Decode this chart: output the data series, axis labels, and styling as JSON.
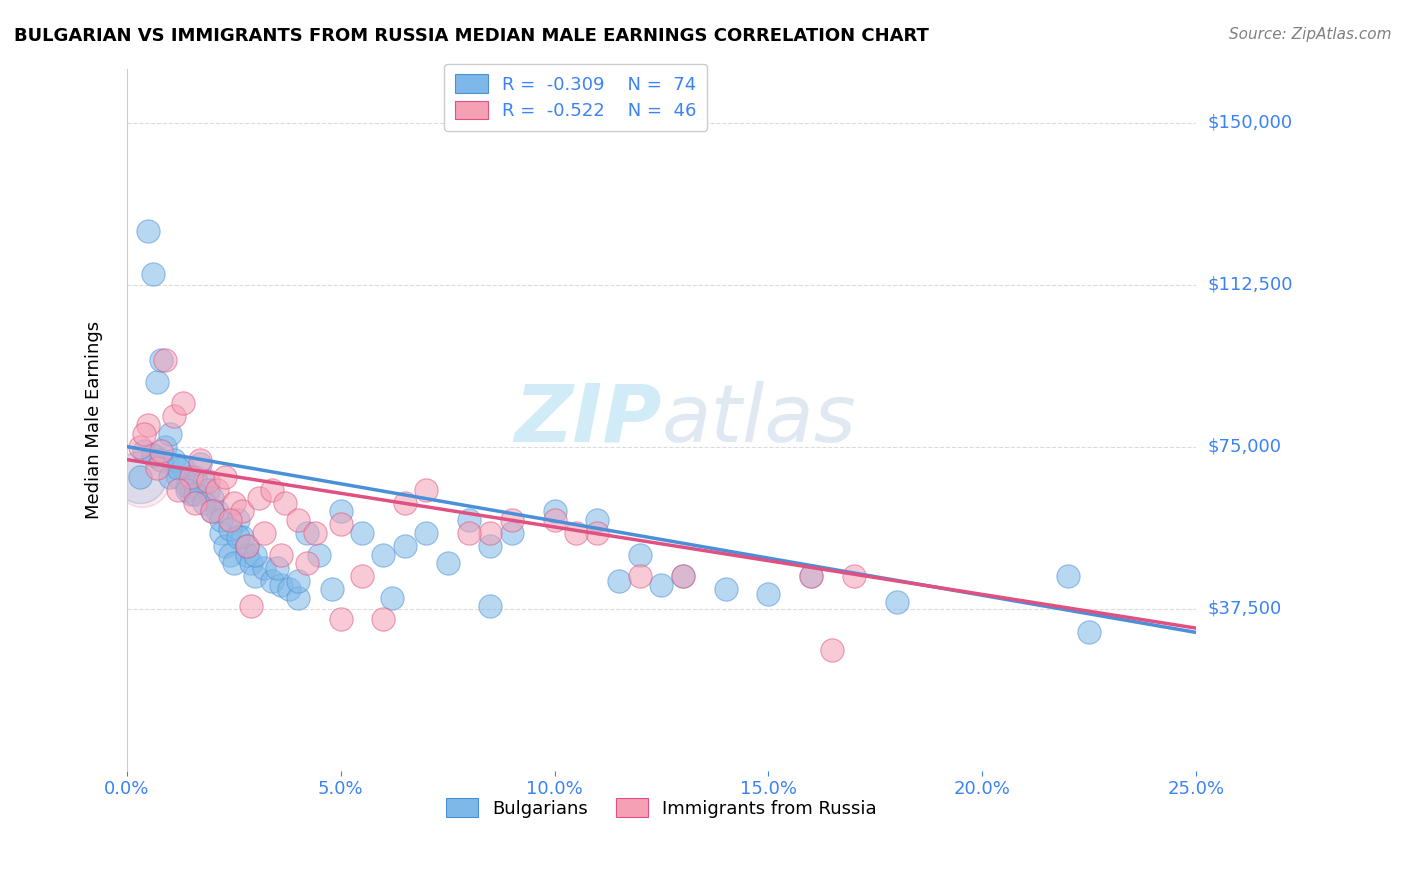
{
  "title": "BULGARIAN VS IMMIGRANTS FROM RUSSIA MEDIAN MALE EARNINGS CORRELATION CHART",
  "source": "Source: ZipAtlas.com",
  "ylabel": "Median Male Earnings",
  "xlabel_ticks": [
    "0.0%",
    "5.0%",
    "10.0%",
    "15.0%",
    "20.0%",
    "25.0%"
  ],
  "xlabel_vals": [
    0.0,
    5.0,
    10.0,
    15.0,
    20.0,
    25.0
  ],
  "ylabel_ticks": [
    0,
    37500,
    75000,
    112500,
    150000
  ],
  "ylabel_labels": [
    "$0",
    "$37,500",
    "$75,000",
    "$112,500",
    "$150,000"
  ],
  "xlim": [
    0.0,
    25.0
  ],
  "ylim": [
    0,
    162500
  ],
  "legend_r_blue": "-0.309",
  "legend_n_blue": "74",
  "legend_r_pink": "-0.522",
  "legend_n_pink": "46",
  "color_blue": "#7EB8E8",
  "color_pink": "#F4A0B5",
  "color_line_blue": "#4A90D9",
  "color_line_pink": "#E05080",
  "color_axis_labels": "#3B82F6",
  "background_color": "#FFFFFF",
  "blue_x": [
    0.3,
    0.5,
    0.6,
    0.7,
    0.8,
    0.9,
    1.0,
    1.1,
    1.2,
    1.3,
    1.4,
    1.5,
    1.6,
    1.7,
    1.8,
    1.9,
    2.0,
    2.1,
    2.2,
    2.3,
    2.4,
    2.5,
    2.6,
    2.7,
    2.8,
    2.9,
    3.0,
    3.2,
    3.4,
    3.6,
    3.8,
    4.0,
    4.2,
    4.5,
    5.0,
    5.5,
    6.0,
    6.5,
    7.0,
    7.5,
    8.0,
    8.5,
    9.0,
    10.0,
    11.0,
    12.0,
    13.0,
    14.0,
    16.0,
    22.0,
    0.4,
    0.6,
    0.8,
    1.0,
    1.2,
    1.4,
    1.6,
    1.8,
    2.0,
    2.2,
    2.4,
    2.6,
    2.8,
    3.0,
    3.5,
    4.0,
    4.8,
    6.2,
    8.5,
    11.5,
    12.5,
    15.0,
    18.0,
    22.5
  ],
  "blue_y": [
    68000,
    125000,
    115000,
    90000,
    95000,
    75000,
    78000,
    72000,
    68000,
    70000,
    66000,
    64000,
    68000,
    71000,
    67000,
    65000,
    63000,
    60000,
    55000,
    52000,
    50000,
    48000,
    58000,
    54000,
    50000,
    48000,
    45000,
    47000,
    44000,
    43000,
    42000,
    40000,
    55000,
    50000,
    60000,
    55000,
    50000,
    52000,
    55000,
    48000,
    58000,
    52000,
    55000,
    60000,
    58000,
    50000,
    45000,
    42000,
    45000,
    45000,
    74000,
    73000,
    72000,
    68000,
    70000,
    65000,
    64000,
    62000,
    60000,
    58000,
    56000,
    54000,
    52000,
    50000,
    47000,
    44000,
    42000,
    40000,
    38000,
    44000,
    43000,
    41000,
    39000,
    32000
  ],
  "pink_x": [
    0.3,
    0.5,
    0.7,
    0.9,
    1.1,
    1.3,
    1.5,
    1.7,
    1.9,
    2.1,
    2.3,
    2.5,
    2.7,
    2.9,
    3.1,
    3.4,
    3.7,
    4.0,
    4.4,
    5.0,
    5.5,
    6.5,
    7.0,
    8.5,
    9.0,
    10.0,
    11.0,
    12.0,
    16.0,
    17.0,
    0.4,
    0.8,
    1.2,
    1.6,
    2.0,
    2.4,
    2.8,
    3.2,
    3.6,
    4.2,
    5.0,
    6.0,
    8.0,
    10.5,
    13.0,
    16.5
  ],
  "pink_y": [
    75000,
    80000,
    70000,
    95000,
    82000,
    85000,
    68000,
    72000,
    67000,
    65000,
    68000,
    62000,
    60000,
    38000,
    63000,
    65000,
    62000,
    58000,
    55000,
    57000,
    45000,
    62000,
    65000,
    55000,
    58000,
    58000,
    55000,
    45000,
    45000,
    45000,
    78000,
    74000,
    65000,
    62000,
    60000,
    58000,
    52000,
    55000,
    50000,
    48000,
    35000,
    35000,
    55000,
    55000,
    45000,
    28000
  ],
  "watermark_zip": "ZIP",
  "watermark_atlas": "atlas",
  "reg_blue_x0": 0.0,
  "reg_blue_y0": 75000,
  "reg_blue_x1": 25.0,
  "reg_blue_y1": 32000,
  "reg_pink_x0": 0.0,
  "reg_pink_y0": 72000,
  "reg_pink_x1": 25.0,
  "reg_pink_y1": 33000
}
